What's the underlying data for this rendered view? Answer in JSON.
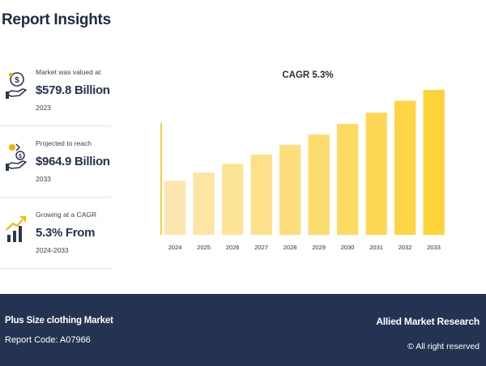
{
  "header": {
    "title": "Report Insights"
  },
  "insights": [
    {
      "icon": "money-hand-icon",
      "label": "Market was valued at",
      "value": "$579.8 Billion",
      "year": "2023"
    },
    {
      "icon": "projection-hand-icon",
      "label": "Projected to reach",
      "value": "$964.9 Billion",
      "year": "2033"
    },
    {
      "icon": "growth-chart-icon",
      "label": "Growing at a CAGR",
      "value": "5.3% From",
      "year": "2024-2033"
    }
  ],
  "chart_data": {
    "type": "bar",
    "title": "CAGR 5.3%",
    "categories": [
      "2024",
      "2025",
      "2026",
      "2027",
      "2028",
      "2029",
      "2030",
      "2031",
      "2032",
      "2033"
    ],
    "values": [
      610.5,
      642.9,
      677.0,
      712.9,
      750.7,
      790.5,
      832.4,
      876.5,
      922.9,
      964.9
    ],
    "ylim": [
      400,
      1000
    ],
    "xlabel": "",
    "ylabel": "",
    "grid": false,
    "bar_color_start": "#fde7b0",
    "bar_color_end": "#fdd33a",
    "axis_color": "#f8cf3a"
  },
  "footer": {
    "market": "Plus Size clothing Market",
    "report_code": "Report Code: A07966",
    "brand": "Allied Market Research",
    "rights": "© All right reserved"
  }
}
